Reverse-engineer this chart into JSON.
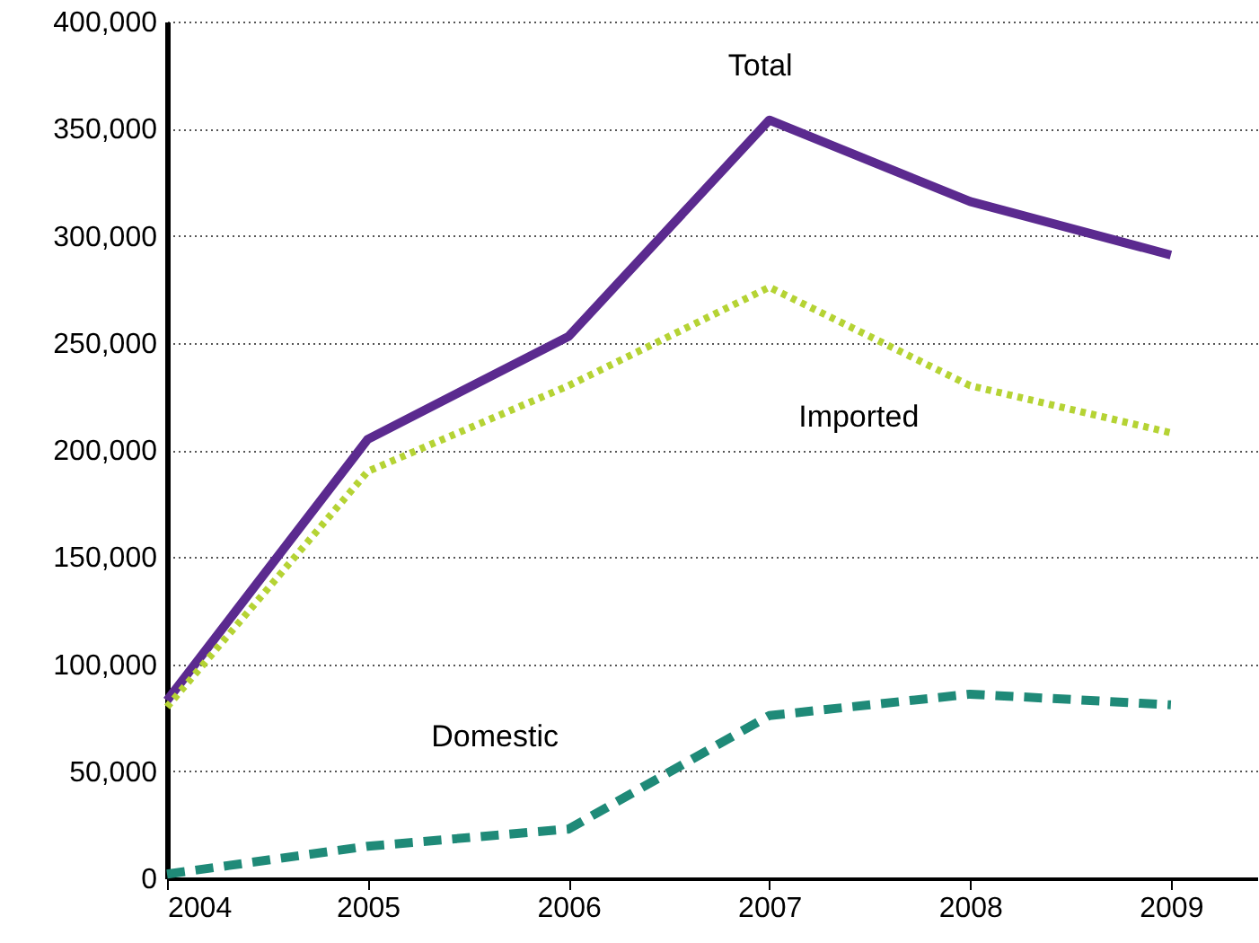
{
  "chart_data": {
    "type": "line",
    "x": [
      2004,
      2005,
      2006,
      2007,
      2008,
      2009
    ],
    "series": [
      {
        "name": "Total",
        "color": "#5b2a8f",
        "line_style": "solid",
        "values": [
          83000,
          205000,
          253000,
          354000,
          316000,
          291000
        ]
      },
      {
        "name": "Imported",
        "color": "#b5d334",
        "line_style": "dotted",
        "values": [
          80000,
          190000,
          230000,
          276000,
          230000,
          208000
        ]
      },
      {
        "name": "Domestic",
        "color": "#1f8a78",
        "line_style": "dashed",
        "values": [
          2000,
          15000,
          23000,
          76000,
          86000,
          81000
        ]
      }
    ],
    "xlim": [
      2004,
      2009.43
    ],
    "xticks": [
      2004,
      2005,
      2006,
      2007,
      2008,
      2009
    ],
    "ylim": [
      0,
      400000
    ],
    "yticks": [
      0,
      {
        "value": 50000,
        "label": "50,000"
      },
      {
        "value": 100000,
        "label": "100,000"
      },
      {
        "value": 150000,
        "label": "150,000"
      },
      {
        "value": 200000,
        "label": "200,000"
      },
      {
        "value": 250000,
        "label": "250,000"
      },
      {
        "value": 300000,
        "label": "300,000"
      },
      {
        "value": 350000,
        "label": "350,000"
      },
      {
        "value": 400000,
        "label": "400,000"
      }
    ],
    "grid": "y",
    "marker": "none"
  }
}
